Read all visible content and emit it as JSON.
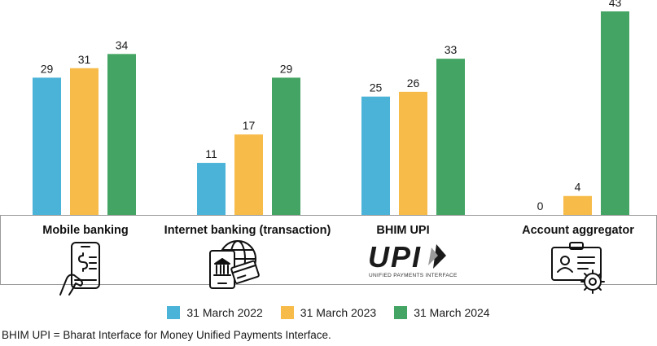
{
  "chart_data": {
    "type": "bar",
    "categories": [
      "Mobile banking",
      "Internet banking (transaction)",
      "BHIM UPI",
      "Account aggregator"
    ],
    "series": [
      {
        "name": "31 March 2022",
        "values": [
          29,
          11,
          25,
          0
        ],
        "color": "#4BB3D8"
      },
      {
        "name": "31 March 2023",
        "values": [
          31,
          17,
          26,
          4
        ],
        "color": "#F7BB49"
      },
      {
        "name": "31 March 2024",
        "values": [
          34,
          29,
          33,
          43
        ],
        "color": "#44A463"
      }
    ],
    "icons": [
      "mobile-banking-icon",
      "internet-banking-icon",
      "upi-logo-icon",
      "account-aggregator-icon"
    ],
    "ylim": [
      0,
      45
    ],
    "grid": false,
    "legend_position": "bottom",
    "logo_text": {
      "upi": "UPI",
      "upi_sub": "UNIFIED PAYMENTS INTERFACE"
    }
  },
  "footnote": "BHIM UPI = Bharat Interface for Money Unified Payments Interface."
}
